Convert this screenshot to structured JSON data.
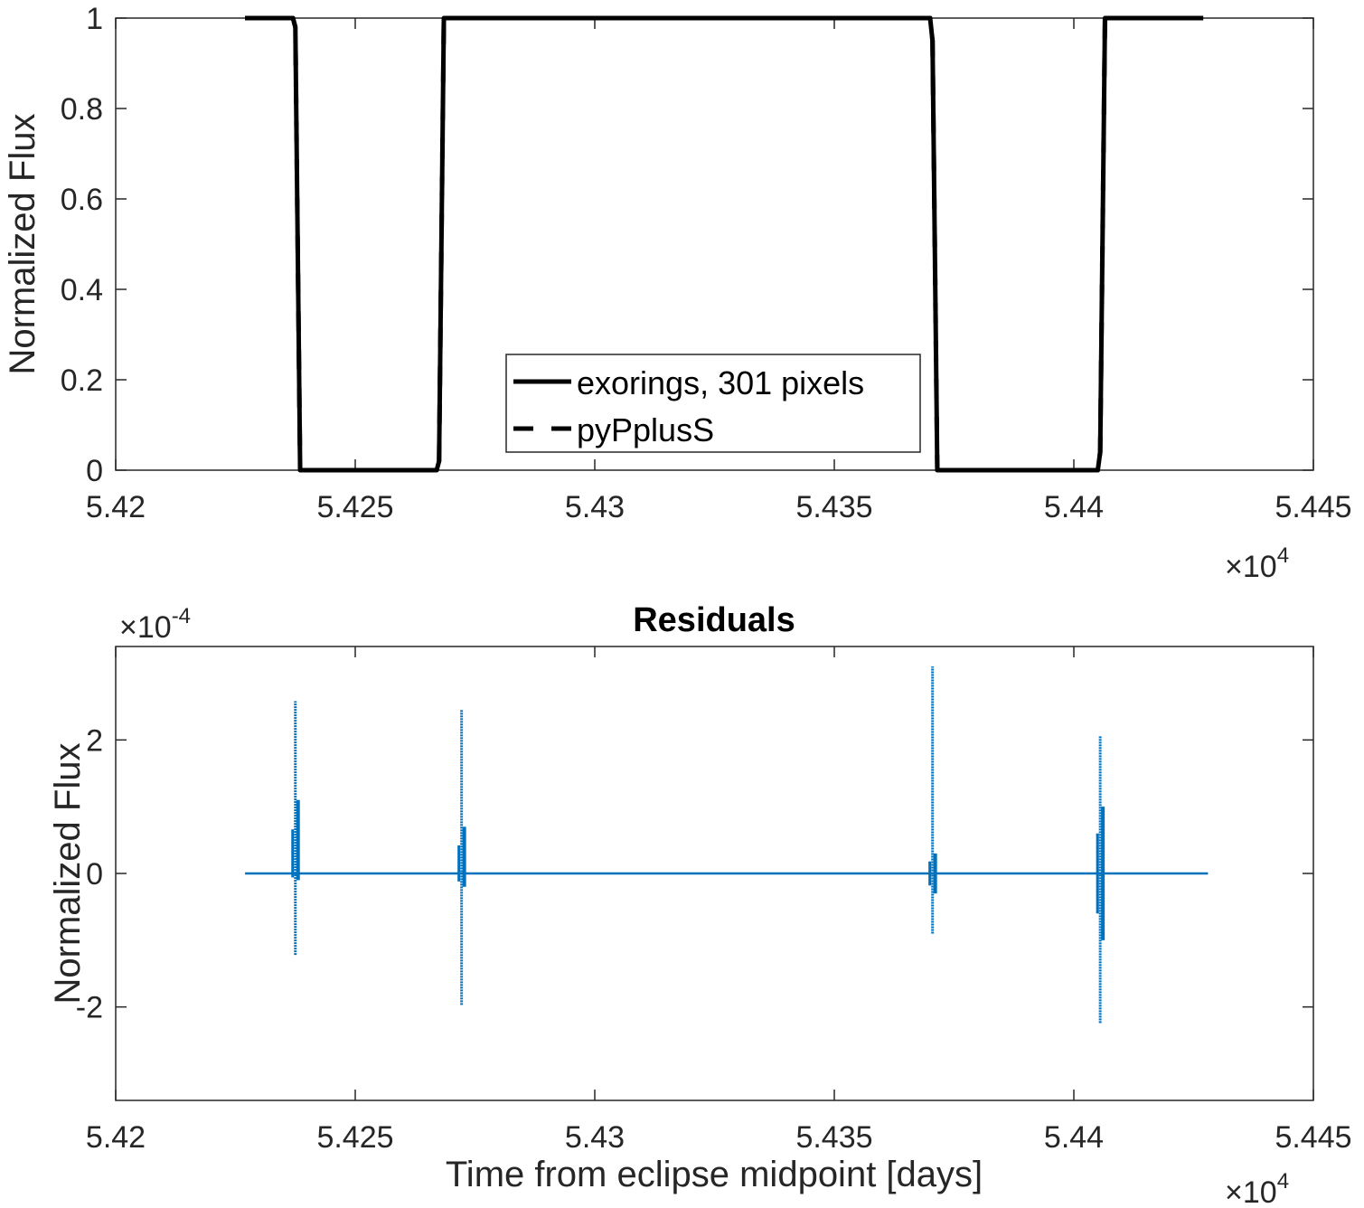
{
  "chart_data": [
    {
      "type": "line",
      "title": "",
      "xlabel": "",
      "ylabel": "Normalized Flux",
      "xlim": [
        54200,
        54450
      ],
      "ylim": [
        0,
        1
      ],
      "x_ticks": [
        54200,
        54250,
        54300,
        54350,
        54400,
        54450
      ],
      "x_tick_labels": [
        "5.42",
        "5.425",
        "5.43",
        "5.435",
        "5.44",
        "5.445"
      ],
      "x_exponent_label": "×10",
      "x_exponent_power": "4",
      "y_ticks": [
        0,
        0.2,
        0.4,
        0.6,
        0.8,
        1
      ],
      "y_tick_labels": [
        "0",
        "0.2",
        "0.4",
        "0.6",
        "0.8",
        "1"
      ],
      "legend_placement": "lower-center",
      "series": [
        {
          "name": "exorings, 301 pixels",
          "style": "solid",
          "color": "#000000",
          "x": [
            54227,
            54237,
            54237.5,
            54238.5,
            54267,
            54267.5,
            54268.5,
            54370,
            54370.5,
            54371.5,
            54405,
            54405.5,
            54406.5,
            54427
          ],
          "y": [
            1,
            1,
            0.98,
            0,
            0,
            0.02,
            1,
            1,
            0.95,
            0,
            0,
            0.04,
            1,
            1
          ]
        },
        {
          "name": "pyPplusS",
          "style": "dashed",
          "color": "#000000",
          "x": [
            54227,
            54237,
            54237.5,
            54238.5,
            54267,
            54267.5,
            54268.5,
            54370,
            54370.5,
            54371.5,
            54405,
            54405.5,
            54406.5,
            54427
          ],
          "y": [
            1,
            1,
            0.98,
            0,
            0,
            0.02,
            1,
            1,
            0.95,
            0,
            0,
            0.04,
            1,
            1
          ]
        }
      ]
    },
    {
      "type": "scatter",
      "title": "Residuals",
      "xlabel": "Time from eclipse midpoint [days]",
      "ylabel": "Normalized Flux",
      "xlim": [
        54200,
        54450
      ],
      "ylim": [
        -0.00034,
        0.00034
      ],
      "x_ticks": [
        54200,
        54250,
        54300,
        54350,
        54400,
        54450
      ],
      "x_tick_labels": [
        "5.42",
        "5.425",
        "5.43",
        "5.435",
        "5.44",
        "5.445"
      ],
      "x_exponent_label": "×10",
      "x_exponent_power": "4",
      "y_exponent_label": "×10",
      "y_exponent_power": "-4",
      "y_ticks": [
        -0.0002,
        0,
        0.0002
      ],
      "y_tick_labels": [
        "-2",
        "0",
        "2"
      ],
      "series": [
        {
          "name": "residuals",
          "color": "#0072BD",
          "baseline": {
            "x": [
              54227,
              54428
            ],
            "y": [
              0,
              0
            ]
          },
          "spikes": [
            {
              "x": 54237.5,
              "ymin": -0.000122,
              "ymax": 0.000258,
              "cluster_min": -1e-05,
              "cluster_max": 0.00011
            },
            {
              "x": 54272.2,
              "ymin": -0.000197,
              "ymax": 0.000245,
              "cluster_min": -2e-05,
              "cluster_max": 7e-05
            },
            {
              "x": 54370.5,
              "ymin": -9e-05,
              "ymax": 0.00031,
              "cluster_min": -3e-05,
              "cluster_max": 3e-05
            },
            {
              "x": 54405.5,
              "ymin": -0.000224,
              "ymax": 0.000206,
              "cluster_min": -0.0001,
              "cluster_max": 0.0001
            }
          ]
        }
      ]
    }
  ]
}
